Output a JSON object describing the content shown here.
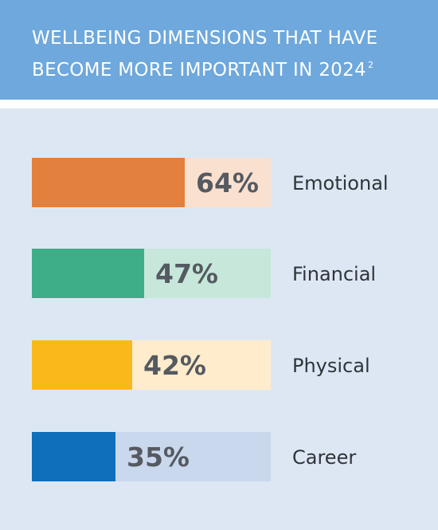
{
  "header": {
    "title_line1": "WELLBEING DIMENSIONS THAT HAVE",
    "title_line2": "BECOME MORE IMPORTANT IN 2024",
    "footnote": "2"
  },
  "colors": {
    "header_bg": "#6ea8dc",
    "panel_bg": "#dde7f4"
  },
  "chart_data": {
    "type": "bar",
    "orientation": "horizontal",
    "title": "WELLBEING DIMENSIONS THAT HAVE BECOME MORE IMPORTANT IN 2024",
    "categories": [
      "Emotional",
      "Financial",
      "Physical",
      "Career"
    ],
    "values": [
      64,
      47,
      42,
      35
    ],
    "value_labels": [
      "64%",
      "47%",
      "42%",
      "35%"
    ],
    "xlim": [
      0,
      100
    ],
    "colors": [
      "#e3803e",
      "#3dae87",
      "#fbb81a",
      "#0f6fba"
    ],
    "track_colors": [
      "#fae0cf",
      "#c6e7da",
      "#ffeccc",
      "#cad8ee"
    ],
    "grid": false,
    "legend": "none"
  }
}
